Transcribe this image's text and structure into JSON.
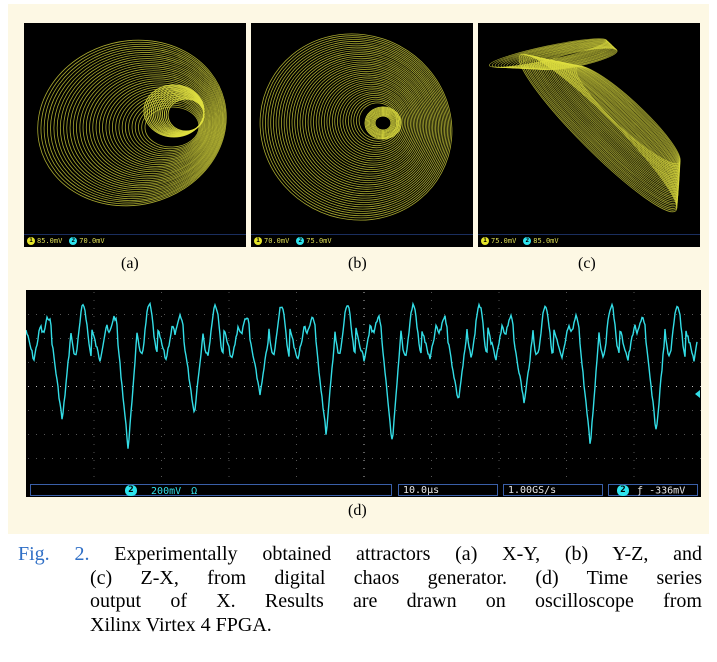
{
  "figure": {
    "panels": [
      {
        "id": "a",
        "label": "(a)",
        "ch1_scale": "85.0mV",
        "ch2_scale": "70.0mV",
        "ch1_num": "1",
        "ch2_num": "2",
        "plot": "X-Y"
      },
      {
        "id": "b",
        "label": "(b)",
        "ch1_scale": "70.0mV",
        "ch2_scale": "75.0mV",
        "ch1_num": "1",
        "ch2_num": "2",
        "plot": "Y-Z"
      },
      {
        "id": "c",
        "label": "(c)",
        "ch1_scale": "75.0mV",
        "ch2_scale": "85.0mV",
        "ch1_num": "1",
        "ch2_num": "2",
        "plot": "Z-X"
      }
    ],
    "timeseries": {
      "label": "(d)",
      "channel": "2",
      "vscale": "200mV",
      "vunit": "Ω",
      "timebase": "10.0µs",
      "samplerate": "1.00GS/s",
      "trigger_channel": "2",
      "trigger": "-336mV",
      "trigger_symbol": "ƒ"
    },
    "colors": {
      "attractor": "#e0e040",
      "trace": "#33dde6",
      "background": "#000000",
      "panel": "#fdf8e4"
    }
  },
  "caption": {
    "label": "Fig. 2.",
    "line1": "Experimentally obtained attractors (a) X-Y, (b) Y-Z, and",
    "line2": "(c) Z-X, from digital chaos generator. (d) Time series",
    "line3": "output of X. Results are drawn on oscilloscope from",
    "line4": "Xilinx Virtex 4 FPGA."
  }
}
